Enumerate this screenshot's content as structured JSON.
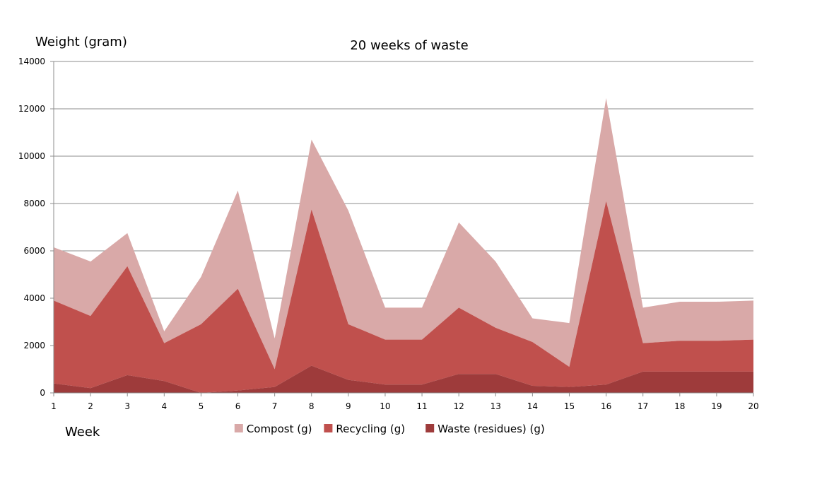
{
  "chart_data": {
    "type": "area",
    "stacked": true,
    "title": "20 weeks of waste",
    "xlabel": "Week",
    "ylabel": "Weight (gram)",
    "ylim": [
      0,
      14000
    ],
    "yticks": [
      0,
      2000,
      4000,
      6000,
      8000,
      10000,
      12000,
      14000
    ],
    "x": [
      1,
      2,
      3,
      4,
      5,
      6,
      7,
      8,
      9,
      10,
      11,
      12,
      13,
      14,
      15,
      16,
      17,
      18,
      19,
      20
    ],
    "grid": "horizontal",
    "legend_position": "bottom",
    "series": [
      {
        "name": "Waste (residues) (g)",
        "color": "#9e3b3b",
        "values": [
          400,
          200,
          750,
          500,
          0,
          100,
          250,
          1150,
          550,
          350,
          350,
          800,
          800,
          300,
          250,
          350,
          900,
          900,
          900,
          900
        ]
      },
      {
        "name": "Recycling (g)",
        "color": "#c0504d",
        "values": [
          3500,
          3050,
          4600,
          1600,
          2900,
          4300,
          750,
          6600,
          2350,
          1900,
          1900,
          2800,
          1950,
          1850,
          850,
          7750,
          1200,
          1300,
          1300,
          1350
        ]
      },
      {
        "name": "Compost (g)",
        "color": "#d9a9a8",
        "values": [
          2250,
          2300,
          1400,
          500,
          2000,
          4150,
          1300,
          2950,
          4800,
          1350,
          1350,
          3600,
          2800,
          1000,
          1850,
          4350,
          1500,
          1650,
          1650,
          1650
        ]
      }
    ],
    "legend_order": [
      "Compost (g)",
      "Recycling (g)",
      "Waste (residues) (g)"
    ]
  }
}
